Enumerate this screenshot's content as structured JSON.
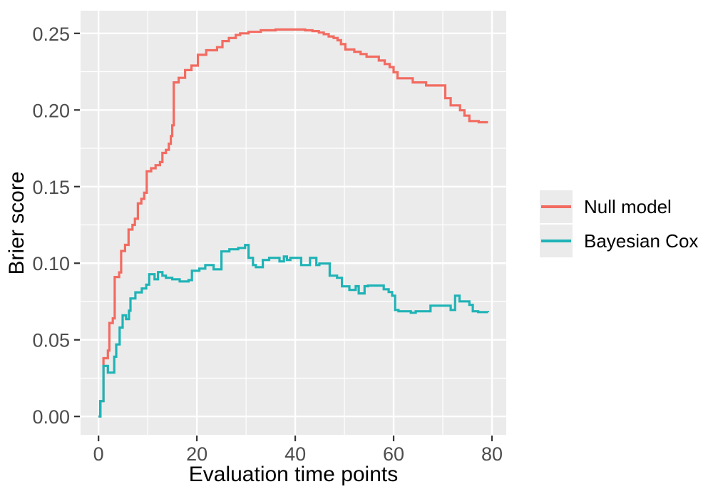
{
  "figure": {
    "background": "#FFFFFF",
    "panel_background": "#EBEBEB",
    "gridline_color": "#FFFFFF",
    "tick_color": "#333333",
    "tick_label_color": "#4D4D4D",
    "axis_title_color": "#000000",
    "legend_key_background": "#EBEBEB"
  },
  "chart_data": {
    "type": "line",
    "line_style": "step",
    "title": "",
    "xlabel": "Evaluation time points",
    "ylabel": "Brier score",
    "xlim": [
      -3.65,
      82.9
    ],
    "ylim": [
      -0.012,
      0.2648
    ],
    "grid": true,
    "legend_position": "right",
    "x_ticks": {
      "values": [
        0,
        20,
        40,
        60,
        80
      ],
      "labels": [
        "0",
        "20",
        "40",
        "60",
        "80"
      ]
    },
    "y_ticks": {
      "values": [
        0,
        0.05,
        0.1,
        0.15,
        0.2,
        0.25
      ],
      "labels": [
        "0.00",
        "0.05",
        "0.10",
        "0.15",
        "0.20",
        "0.25"
      ]
    },
    "x_minor": [
      10,
      30,
      50,
      70
    ],
    "y_minor": [
      0.025,
      0.075,
      0.125,
      0.175,
      0.225
    ],
    "series": [
      {
        "name": "Null model",
        "color": "#F26B61",
        "points": [
          [
            0,
            0
          ],
          [
            0.4,
            0.01
          ],
          [
            1,
            0.038
          ],
          [
            1.9,
            0.043
          ],
          [
            2.2,
            0.061
          ],
          [
            2.9,
            0.064
          ],
          [
            3.3,
            0.091
          ],
          [
            4.2,
            0.094
          ],
          [
            4.6,
            0.108
          ],
          [
            5.4,
            0.112
          ],
          [
            6.1,
            0.122
          ],
          [
            6.9,
            0.125
          ],
          [
            7.4,
            0.129
          ],
          [
            8,
            0.139
          ],
          [
            8.7,
            0.142
          ],
          [
            9.3,
            0.146
          ],
          [
            9.8,
            0.16
          ],
          [
            10.7,
            0.162
          ],
          [
            11.6,
            0.164
          ],
          [
            12.5,
            0.166
          ],
          [
            13,
            0.172
          ],
          [
            13.7,
            0.174
          ],
          [
            14.3,
            0.178
          ],
          [
            14.7,
            0.183
          ],
          [
            15,
            0.19
          ],
          [
            15.3,
            0.218
          ],
          [
            16.3,
            0.221
          ],
          [
            17.6,
            0.226
          ],
          [
            18.9,
            0.229
          ],
          [
            20.2,
            0.236
          ],
          [
            21.9,
            0.239
          ],
          [
            24.1,
            0.241
          ],
          [
            25.2,
            0.245
          ],
          [
            26.5,
            0.247
          ],
          [
            27.9,
            0.249
          ],
          [
            28.8,
            0.25
          ],
          [
            30.5,
            0.251
          ],
          [
            33,
            0.252
          ],
          [
            36,
            0.2525
          ],
          [
            42,
            0.252
          ],
          [
            43.5,
            0.2515
          ],
          [
            44.8,
            0.2505
          ],
          [
            45.8,
            0.2495
          ],
          [
            46.8,
            0.248
          ],
          [
            47.8,
            0.247
          ],
          [
            48.6,
            0.2455
          ],
          [
            49.3,
            0.243
          ],
          [
            50.2,
            0.2395
          ],
          [
            52,
            0.238
          ],
          [
            53.3,
            0.2365
          ],
          [
            54.5,
            0.2348
          ],
          [
            57,
            0.2323
          ],
          [
            58.2,
            0.23
          ],
          [
            59.2,
            0.228
          ],
          [
            60,
            0.2246
          ],
          [
            60.8,
            0.2207
          ],
          [
            63.9,
            0.218
          ],
          [
            66.6,
            0.216
          ],
          [
            70.5,
            0.2077
          ],
          [
            71.6,
            0.203
          ],
          [
            73.5,
            0.1998
          ],
          [
            74.4,
            0.1963
          ],
          [
            75.4,
            0.1928
          ],
          [
            77.3,
            0.192
          ],
          [
            79.2,
            0.192
          ]
        ]
      },
      {
        "name": "Bayesian Cox",
        "color": "#1FB3B6",
        "points": [
          [
            0,
            0
          ],
          [
            0.35,
            0.01
          ],
          [
            1,
            0.033
          ],
          [
            1.9,
            0.0286
          ],
          [
            3.2,
            0.039
          ],
          [
            3.6,
            0.047
          ],
          [
            4.3,
            0.058
          ],
          [
            4.9,
            0.066
          ],
          [
            5.6,
            0.0635
          ],
          [
            6.2,
            0.069
          ],
          [
            6.5,
            0.077
          ],
          [
            7.5,
            0.081
          ],
          [
            8.8,
            0.0835
          ],
          [
            9.7,
            0.086
          ],
          [
            10.3,
            0.0928
          ],
          [
            11.4,
            0.0895
          ],
          [
            12.1,
            0.0942
          ],
          [
            13,
            0.0919
          ],
          [
            13.7,
            0.0905
          ],
          [
            15,
            0.0895
          ],
          [
            16.5,
            0.0881
          ],
          [
            18.3,
            0.089
          ],
          [
            19,
            0.0951
          ],
          [
            20.5,
            0.0965
          ],
          [
            21.7,
            0.0988
          ],
          [
            23.4,
            0.096
          ],
          [
            25,
            0.1077
          ],
          [
            26.6,
            0.1091
          ],
          [
            28.4,
            0.11
          ],
          [
            29.8,
            0.1119
          ],
          [
            30.5,
            0.1035
          ],
          [
            31.4,
            0.0988
          ],
          [
            32,
            0.0974
          ],
          [
            33.4,
            0.1021
          ],
          [
            34.7,
            0.1035
          ],
          [
            36.8,
            0.1012
          ],
          [
            37.7,
            0.1044
          ],
          [
            38.3,
            0.1021
          ],
          [
            39,
            0.1035
          ],
          [
            41.2,
            0.0988
          ],
          [
            43,
            0.1035
          ],
          [
            44.3,
            0.0988
          ],
          [
            44.9,
            0.0998
          ],
          [
            47,
            0.0919
          ],
          [
            48.5,
            0.0905
          ],
          [
            49.5,
            0.0849
          ],
          [
            51,
            0.0826
          ],
          [
            52.3,
            0.085
          ],
          [
            52.9,
            0.0803
          ],
          [
            54.1,
            0.085
          ],
          [
            54.8,
            0.0854
          ],
          [
            58,
            0.083
          ],
          [
            59,
            0.0812
          ],
          [
            59.7,
            0.0788
          ],
          [
            60.3,
            0.0695
          ],
          [
            61,
            0.0686
          ],
          [
            63.5,
            0.0677
          ],
          [
            64.5,
            0.0686
          ],
          [
            67.5,
            0.0723
          ],
          [
            71.6,
            0.0695
          ],
          [
            72.5,
            0.0788
          ],
          [
            73.4,
            0.0751
          ],
          [
            75.4,
            0.0728
          ],
          [
            76.1,
            0.0686
          ],
          [
            77.2,
            0.0681
          ],
          [
            79.2,
            0.068
          ]
        ]
      }
    ]
  }
}
